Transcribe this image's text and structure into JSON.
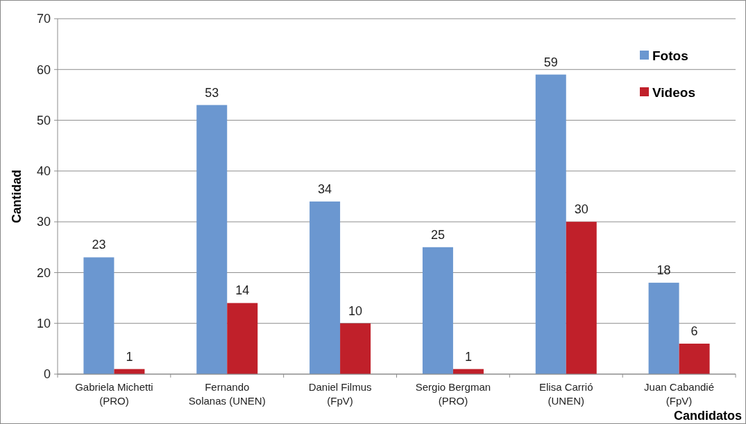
{
  "chart_data": {
    "type": "bar",
    "xlabel": "Candidatos",
    "ylabel": "Cantidad",
    "categories": [
      "Gabriela Michetti\n(PRO)",
      "Fernando\nSolanas (UNEN)",
      "Daniel Filmus\n(FpV)",
      "Sergio Bergman\n(PRO)",
      "Elisa Carrió\n(UNEN)",
      "Juan Cabandié\n(FpV)"
    ],
    "series": [
      {
        "name": "Fotos",
        "color": "#6b97d0",
        "values": [
          23,
          53,
          34,
          25,
          59,
          18
        ]
      },
      {
        "name": "Videos",
        "color": "#c0202a",
        "values": [
          1,
          14,
          10,
          1,
          30,
          6
        ]
      }
    ],
    "ylim": [
      0,
      70
    ],
    "yticks": [
      0,
      10,
      20,
      30,
      40,
      50,
      60,
      70
    ],
    "grid": "y",
    "legend": "top right",
    "data_labels": true
  }
}
